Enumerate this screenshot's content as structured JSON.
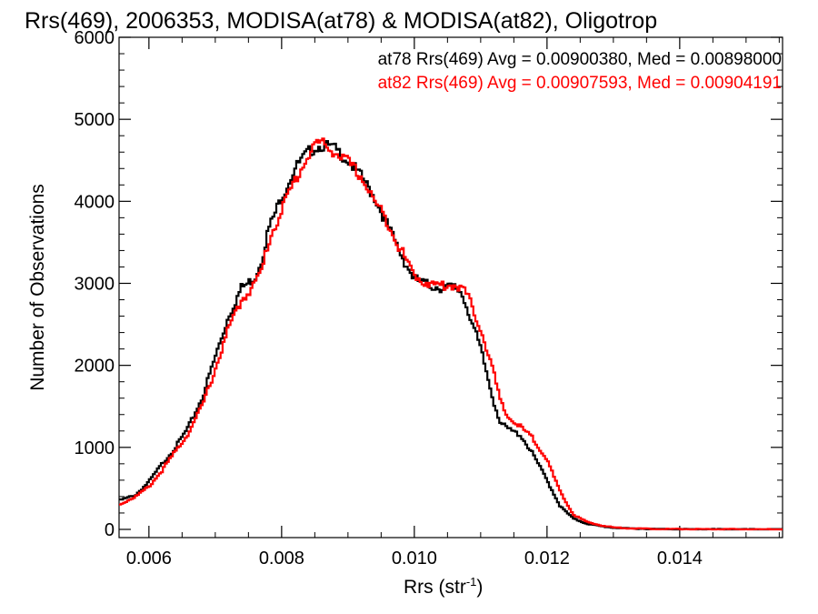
{
  "chart_data": {
    "type": "line",
    "title": "Rrs(469), 2006353, MODISA(at78) & MODISA(at82), Oligotrop",
    "xlabel": "Rrs (str",
    "xlabel_sup": "-1",
    "xlabel_close": ")",
    "ylabel": "Number of Observations",
    "xlim": [
      0.00555,
      0.01555
    ],
    "ylim": [
      -100,
      6000
    ],
    "xticks": [
      0.006,
      0.008,
      0.01,
      0.012,
      0.014
    ],
    "xtick_labels": [
      "0.006",
      "0.008",
      "0.010",
      "0.012",
      "0.014"
    ],
    "yticks": [
      0,
      1000,
      2000,
      3000,
      4000,
      5000,
      6000
    ],
    "ytick_labels": [
      "0",
      "1000",
      "2000",
      "3000",
      "4000",
      "5000",
      "6000"
    ],
    "grid": false,
    "legend_position": "top-right",
    "series": [
      {
        "name": "at78",
        "color": "#000000",
        "legend": "at78 Rrs(469) Avg = 0.00900380, Med = 0.00898000",
        "x": [
          0.00555,
          0.0058,
          0.006,
          0.0062,
          0.0064,
          0.0066,
          0.0068,
          0.007,
          0.0072,
          0.0074,
          0.0075,
          0.0076,
          0.0077,
          0.0078,
          0.008,
          0.0082,
          0.0084,
          0.0085,
          0.0086,
          0.0087,
          0.0088,
          0.009,
          0.0092,
          0.0094,
          0.0096,
          0.0098,
          0.01,
          0.0102,
          0.0104,
          0.0106,
          0.0107,
          0.0108,
          0.011,
          0.0112,
          0.0113,
          0.0114,
          0.0116,
          0.0118,
          0.012,
          0.0122,
          0.0124,
          0.0126,
          0.0128,
          0.013,
          0.0132,
          0.0134,
          0.0136,
          0.014,
          0.0145,
          0.015,
          0.01555
        ],
        "y": [
          350,
          420,
          580,
          800,
          1000,
          1250,
          1600,
          2100,
          2600,
          2950,
          3000,
          3080,
          3300,
          3650,
          4050,
          4400,
          4600,
          4650,
          4680,
          4670,
          4640,
          4500,
          4300,
          4050,
          3700,
          3350,
          3050,
          2980,
          2950,
          2950,
          2900,
          2700,
          2200,
          1550,
          1300,
          1230,
          1150,
          900,
          600,
          280,
          130,
          70,
          40,
          20,
          12,
          8,
          5,
          3,
          2,
          1,
          0
        ]
      },
      {
        "name": "at82",
        "color": "#ff0000",
        "legend": "at82 Rrs(469) Avg = 0.00907593, Med = 0.00904191",
        "x": [
          0.00555,
          0.0058,
          0.006,
          0.0062,
          0.0064,
          0.0066,
          0.0068,
          0.007,
          0.0072,
          0.0074,
          0.0075,
          0.0076,
          0.0077,
          0.0078,
          0.008,
          0.0082,
          0.0084,
          0.0085,
          0.0086,
          0.0087,
          0.0088,
          0.009,
          0.0092,
          0.0094,
          0.0096,
          0.0098,
          0.01,
          0.0102,
          0.0104,
          0.0106,
          0.0107,
          0.0108,
          0.011,
          0.0112,
          0.0113,
          0.0114,
          0.0116,
          0.0118,
          0.012,
          0.0122,
          0.0124,
          0.0126,
          0.0128,
          0.013,
          0.0132,
          0.0134,
          0.0136,
          0.014,
          0.0145,
          0.015,
          0.01555
        ],
        "y": [
          300,
          400,
          520,
          720,
          950,
          1180,
          1500,
          1950,
          2450,
          2800,
          2900,
          3000,
          3150,
          3500,
          3900,
          4250,
          4550,
          4700,
          4720,
          4650,
          4600,
          4480,
          4300,
          4000,
          3750,
          3400,
          3100,
          3000,
          2970,
          2980,
          2960,
          2850,
          2450,
          1900,
          1550,
          1380,
          1250,
          1100,
          850,
          450,
          180,
          90,
          50,
          25,
          15,
          10,
          6,
          4,
          2,
          1,
          0
        ]
      }
    ]
  }
}
